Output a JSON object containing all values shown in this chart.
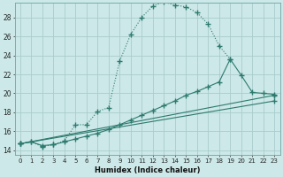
{
  "xlabel": "Humidex (Indice chaleur)",
  "bg_color": "#cce8e8",
  "grid_color": "#aacccc",
  "line_color": "#2d7a6e",
  "xlim": [
    -0.5,
    23.5
  ],
  "ylim": [
    13.5,
    29.5
  ],
  "xticks": [
    0,
    1,
    2,
    3,
    4,
    5,
    6,
    7,
    8,
    9,
    10,
    11,
    12,
    13,
    14,
    15,
    16,
    17,
    18,
    19,
    20,
    21,
    22,
    23
  ],
  "yticks": [
    14,
    16,
    18,
    20,
    22,
    24,
    26,
    28
  ],
  "line1_x": [
    0,
    1,
    2,
    3,
    4,
    5,
    6,
    7,
    8,
    9,
    10,
    11,
    12,
    13,
    14,
    15,
    16,
    17,
    18,
    19
  ],
  "line1_y": [
    14.7,
    14.9,
    14.4,
    14.6,
    15.0,
    16.7,
    16.7,
    18.1,
    18.5,
    23.4,
    26.2,
    28.0,
    29.2,
    29.6,
    29.3,
    29.1,
    28.5,
    27.3,
    25.0,
    23.6
  ],
  "line2_x": [
    0,
    1,
    2,
    3,
    4,
    5,
    6,
    7,
    8,
    9,
    10,
    11,
    12,
    13,
    14,
    15,
    16,
    17,
    18,
    19,
    20,
    21,
    22,
    23
  ],
  "line2_y": [
    14.7,
    14.9,
    14.5,
    14.6,
    14.9,
    15.2,
    15.5,
    15.8,
    16.2,
    16.7,
    17.2,
    17.7,
    18.2,
    18.7,
    19.2,
    19.8,
    20.2,
    20.7,
    21.2,
    23.6,
    21.9,
    20.1,
    20.0,
    19.9
  ],
  "line3_x": [
    0,
    23
  ],
  "line3_y": [
    14.7,
    19.8
  ],
  "line4_x": [
    0,
    23
  ],
  "line4_y": [
    14.7,
    19.2
  ]
}
